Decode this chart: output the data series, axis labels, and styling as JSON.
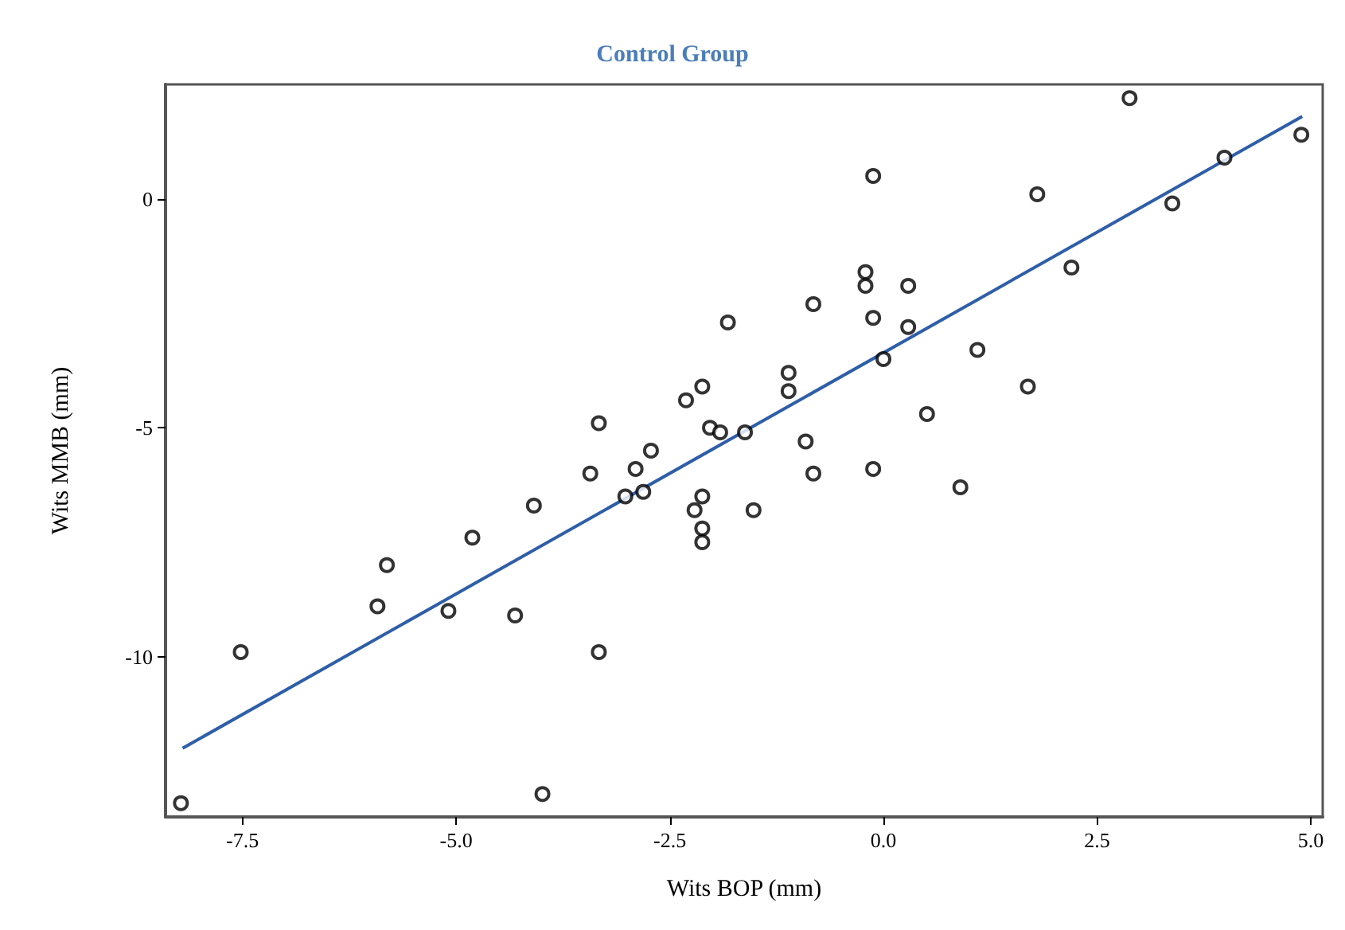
{
  "chart_data": {
    "type": "scatter",
    "title": "Control Group",
    "xlabel": "Wits BOP (mm)",
    "ylabel": "Wits MMB (mm)",
    "marker": "circle",
    "grid": false,
    "xlim": [
      -8.4,
      5.14
    ],
    "ylim": [
      -13.5,
      2.5
    ],
    "xticks": [
      {
        "value": -7.5,
        "label": "-7.5"
      },
      {
        "value": -5,
        "label": "-5.0"
      },
      {
        "value": -2.5,
        "label": "-2.5"
      },
      {
        "value": 0,
        "label": "0.0"
      },
      {
        "value": 2.5,
        "label": "2.5"
      },
      {
        "value": 5,
        "label": "5.0"
      }
    ],
    "yticks": [
      -10,
      -5,
      0
    ],
    "series": [
      {
        "color": "#000000",
        "x": [
          -8.22,
          -7.52,
          -5.92,
          -5.81,
          -5.09,
          -4.81,
          -4.09,
          -4.31,
          -3.99,
          -3.43,
          -3.33,
          -3.33,
          -3.02,
          -2.9,
          -2.81,
          -2.72,
          -2.31,
          -2.21,
          -2.12,
          -2.12,
          -2.12,
          -2.12,
          -2.03,
          -1.91,
          -1.82,
          -1.62,
          -1.52,
          -1.11,
          -1.11,
          -0.91,
          -0.82,
          -0.82,
          -0.21,
          -0.21,
          -0.12,
          -0.12,
          -0.12,
          0.0,
          0.29,
          0.29,
          0.51,
          0.9,
          1.1,
          1.69,
          1.8,
          2.2,
          2.88,
          3.38,
          3.99,
          4.89
        ],
        "values": [
          -13.2,
          -9.9,
          -8.9,
          -8.0,
          -9.0,
          -7.4,
          -6.7,
          -9.1,
          -13.0,
          -6.0,
          -4.9,
          -9.9,
          -6.5,
          -5.9,
          -6.4,
          -5.5,
          -4.4,
          -6.8,
          -4.1,
          -6.5,
          -7.2,
          -7.5,
          -5.0,
          -5.1,
          -2.7,
          -5.1,
          -6.8,
          -3.8,
          -4.2,
          -5.3,
          -2.3,
          -6.0,
          -1.6,
          -1.9,
          0.5,
          -2.6,
          -5.9,
          -3.5,
          -1.9,
          -2.8,
          -4.7,
          -6.3,
          -3.3,
          -4.1,
          0.1,
          -1.5,
          2.2,
          -0.1,
          0.9,
          1.4
        ]
      },
      {
        "type": "line",
        "color": "#2e5ea8",
        "marker": "none",
        "line_style": "solid",
        "x": [
          -8.2,
          4.9
        ],
        "values": [
          -12.0,
          1.8
        ]
      }
    ]
  }
}
